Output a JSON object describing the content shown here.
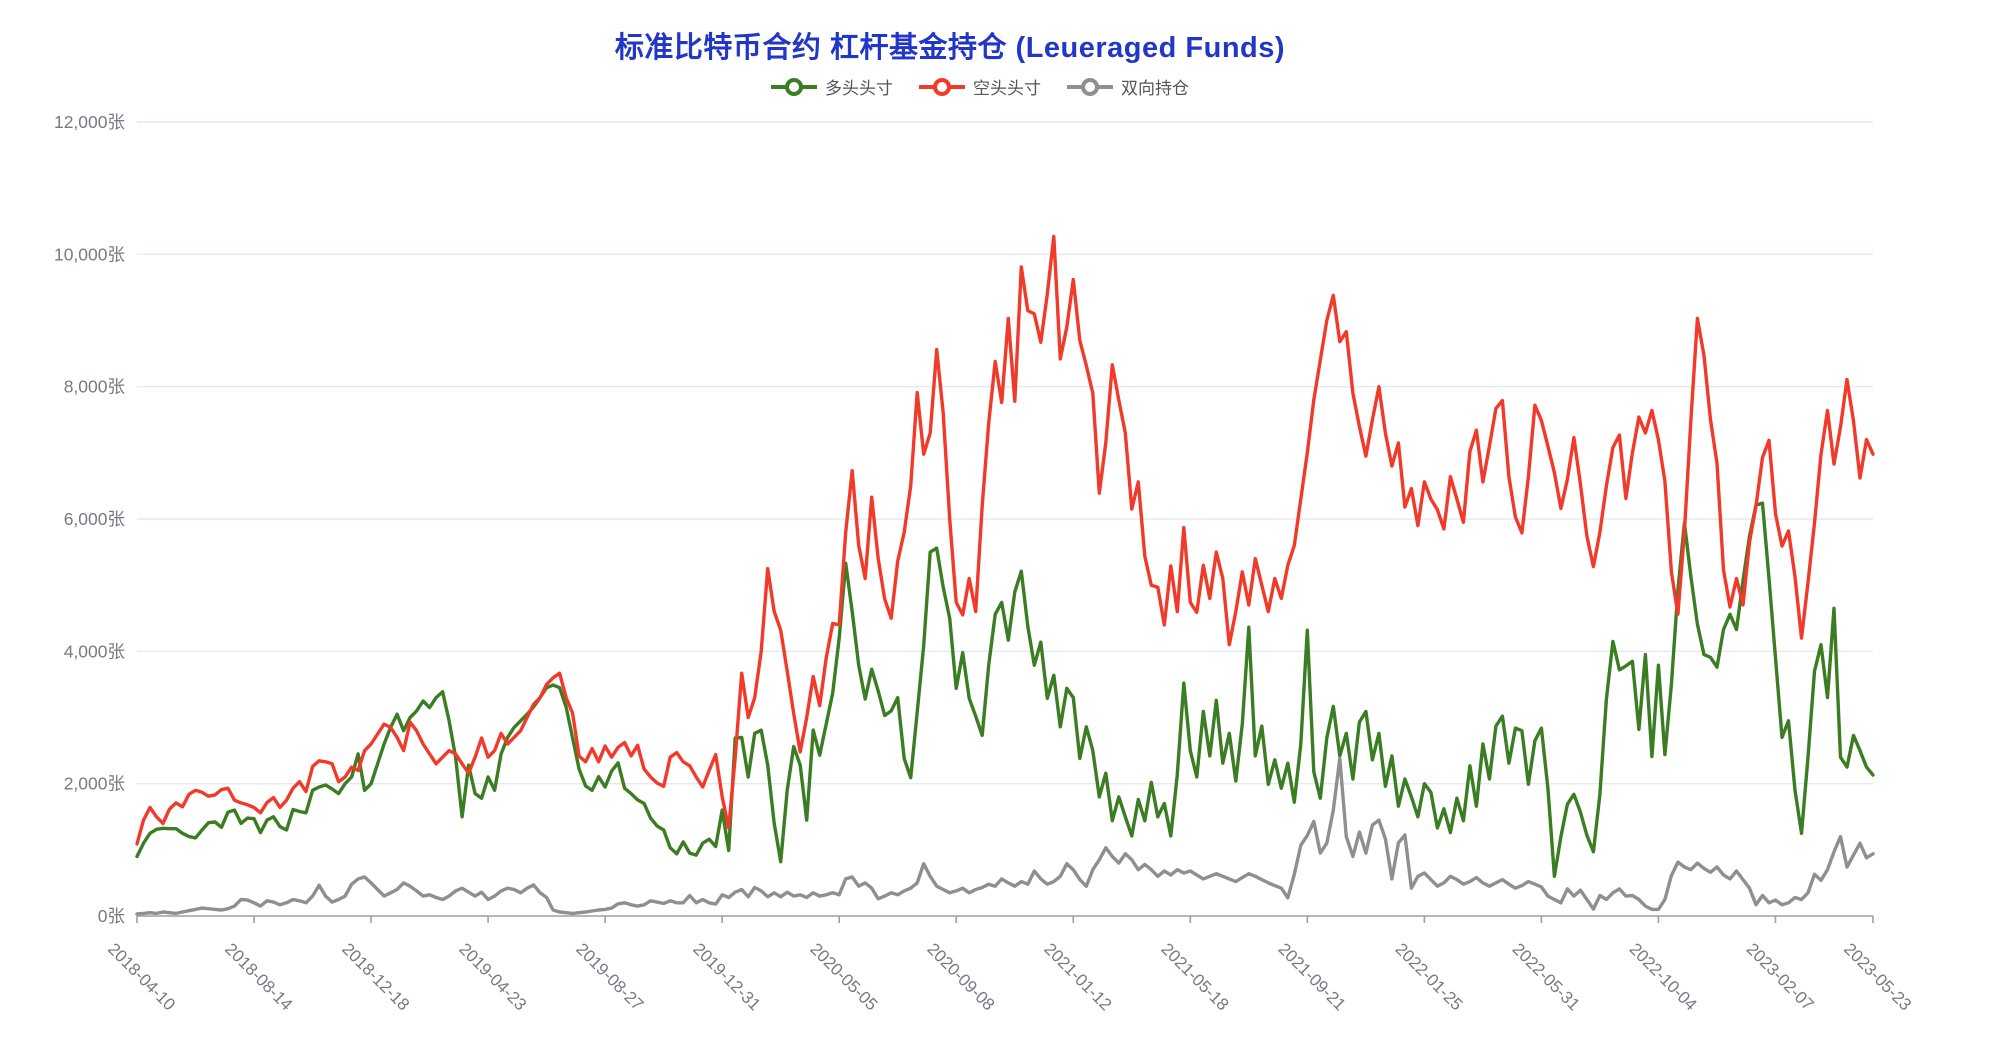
{
  "title": {
    "text": "标准比特币合约 杠杆基金持仓 (Leueraged Funds)",
    "color": "#2236c7"
  },
  "legend": {
    "items": [
      {
        "label": "多头头寸",
        "color": "#3b7d23"
      },
      {
        "label": "空头头寸",
        "color": "#f13a2a"
      },
      {
        "label": "双向持仓",
        "color": "#8f8f8f"
      }
    ]
  },
  "colors": {
    "background": "#ffffff",
    "grid_line": "#e5e9f2",
    "axis_line": "#9aa0a8",
    "axis_text": "#767a85",
    "title_text": "#2236c7",
    "legend_text": "#52555c"
  },
  "chart_data": {
    "type": "line",
    "title": "标准比特币合约 杠杆基金持仓 (Leueraged Funds)",
    "unit": "张",
    "frequency": "weekly",
    "n_points": 268,
    "x_range": [
      "2018-04-10",
      "2023-05-23"
    ],
    "x_tick_labels": [
      "2018-04-10",
      "2018-08-14",
      "2018-12-18",
      "2019-04-23",
      "2019-08-27",
      "2019-12-31",
      "2020-05-05",
      "2020-09-08",
      "2021-01-12",
      "2021-05-18",
      "2021-09-21",
      "2022-01-25",
      "2022-05-31",
      "2022-10-04",
      "2023-02-07",
      "2023-05-23"
    ],
    "x_tick_indices": [
      0,
      18,
      36,
      54,
      72,
      90,
      108,
      126,
      144,
      162,
      180,
      198,
      216,
      234,
      252,
      267
    ],
    "y_tick_labels": [
      "0张",
      "2,000张",
      "4,000张",
      "6,000张",
      "8,000张",
      "10,000张",
      "12,000张"
    ],
    "y_tick_values": [
      0,
      2000,
      4000,
      6000,
      8000,
      10000,
      12000
    ],
    "ylim": [
      0,
      12000
    ],
    "grid": true,
    "legend_position": "top",
    "series": [
      {
        "name": "多头头寸",
        "color": "#3b7d23",
        "values": [
          900,
          1100,
          1250,
          1310,
          1325,
          1320,
          1320,
          1250,
          1200,
          1180,
          1300,
          1410,
          1420,
          1340,
          1570,
          1600,
          1400,
          1480,
          1470,
          1260,
          1450,
          1500,
          1350,
          1300,
          1610,
          1580,
          1560,
          1900,
          1950,
          1980,
          1920,
          1850,
          2000,
          2100,
          2450,
          1900,
          2000,
          2300,
          2600,
          2850,
          3050,
          2800,
          3000,
          3100,
          3250,
          3150,
          3300,
          3390,
          2950,
          2400,
          1500,
          2280,
          1850,
          1780,
          2100,
          1900,
          2450,
          2700,
          2850,
          2950,
          3050,
          3160,
          3300,
          3450,
          3490,
          3450,
          3160,
          2690,
          2220,
          1965,
          1900,
          2105,
          1950,
          2190,
          2315,
          1930,
          1850,
          1755,
          1700,
          1480,
          1360,
          1300,
          1030,
          940,
          1120,
          950,
          920,
          1100,
          1160,
          1050,
          1600,
          990,
          2690,
          2700,
          2100,
          2760,
          2810,
          2280,
          1400,
          820,
          1900,
          2560,
          2280,
          1450,
          2810,
          2430,
          2900,
          3370,
          4200,
          5330,
          4600,
          3790,
          3280,
          3730,
          3400,
          3030,
          3100,
          3300,
          2380,
          2090,
          3080,
          4090,
          5500,
          5560,
          4970,
          4500,
          3440,
          3980,
          3290,
          3020,
          2730,
          3790,
          4560,
          4740,
          4170,
          4900,
          5210,
          4380,
          3790,
          4140,
          3290,
          3640,
          2860,
          3440,
          3300,
          2380,
          2860,
          2500,
          1800,
          2160,
          1440,
          1800,
          1500,
          1210,
          1760,
          1440,
          2020,
          1500,
          1700,
          1210,
          2140,
          3520,
          2500,
          2100,
          3090,
          2420,
          3260,
          2310,
          2760,
          2040,
          2900,
          4365,
          2420,
          2870,
          1990,
          2360,
          1930,
          2310,
          1720,
          2600,
          4320,
          2180,
          1780,
          2690,
          3170,
          2420,
          2760,
          2070,
          2930,
          3090,
          2360,
          2760,
          1960,
          2420,
          1660,
          2070,
          1800,
          1500,
          2000,
          1870,
          1330,
          1620,
          1260,
          1780,
          1440,
          2270,
          1660,
          2600,
          2070,
          2870,
          3020,
          2310,
          2840,
          2800,
          1990,
          2650,
          2840,
          1930,
          600,
          1200,
          1690,
          1840,
          1570,
          1220,
          970,
          1840,
          3280,
          4150,
          3720,
          3780,
          3850,
          2820,
          3950,
          2410,
          3790,
          2440,
          3500,
          4920,
          5940,
          5130,
          4410,
          3950,
          3910,
          3760,
          4330,
          4560,
          4330,
          5070,
          5740,
          6210,
          6240,
          5100,
          3900,
          2700,
          2950,
          1900,
          1250,
          2400,
          3700,
          4100,
          3300,
          4650,
          2400,
          2250,
          2730,
          2500,
          2250,
          2130
        ]
      },
      {
        "name": "空头头寸",
        "color": "#f13a2a",
        "values": [
          1090,
          1450,
          1640,
          1500,
          1400,
          1615,
          1710,
          1650,
          1840,
          1900,
          1870,
          1810,
          1830,
          1910,
          1930,
          1750,
          1710,
          1680,
          1640,
          1560,
          1715,
          1790,
          1640,
          1750,
          1930,
          2030,
          1880,
          2260,
          2345,
          2330,
          2300,
          2030,
          2100,
          2250,
          2200,
          2500,
          2600,
          2750,
          2900,
          2850,
          2700,
          2500,
          2930,
          2800,
          2600,
          2450,
          2300,
          2400,
          2500,
          2450,
          2300,
          2160,
          2400,
          2690,
          2400,
          2500,
          2760,
          2600,
          2700,
          2800,
          3000,
          3200,
          3300,
          3500,
          3600,
          3670,
          3300,
          3065,
          2415,
          2330,
          2530,
          2330,
          2570,
          2400,
          2550,
          2620,
          2420,
          2580,
          2220,
          2100,
          2010,
          1960,
          2400,
          2470,
          2330,
          2270,
          2100,
          1950,
          2200,
          2440,
          1800,
          1330,
          2400,
          3670,
          3000,
          3300,
          4000,
          5250,
          4600,
          4320,
          3700,
          3060,
          2480,
          3000,
          3620,
          3180,
          3900,
          4420,
          4400,
          5800,
          6730,
          5600,
          5100,
          6330,
          5400,
          4790,
          4500,
          5360,
          5800,
          6500,
          7910,
          6980,
          7300,
          8560,
          7600,
          6000,
          4740,
          4550,
          5100,
          4600,
          6200,
          7450,
          8380,
          7760,
          9030,
          7780,
          9810,
          9150,
          9100,
          8670,
          9400,
          10270,
          8420,
          8900,
          9620,
          8700,
          8320,
          7900,
          6390,
          7150,
          8330,
          7800,
          7300,
          6150,
          6560,
          5440,
          5000,
          4970,
          4400,
          5290,
          4600,
          5870,
          4740,
          4590,
          5300,
          4800,
          5500,
          5100,
          4100,
          4600,
          5200,
          4700,
          5400,
          5000,
          4600,
          5100,
          4800,
          5300,
          5600,
          6300,
          7000,
          7800,
          8400,
          9000,
          9380,
          8680,
          8830,
          7900,
          7400,
          6950,
          7500,
          8000,
          7300,
          6800,
          7150,
          6180,
          6460,
          5900,
          6560,
          6300,
          6140,
          5850,
          6640,
          6300,
          5950,
          7020,
          7340,
          6560,
          7100,
          7670,
          7790,
          6640,
          6030,
          5790,
          6640,
          7720,
          7490,
          7100,
          6700,
          6160,
          6600,
          7230,
          6530,
          5740,
          5280,
          5800,
          6500,
          7080,
          7270,
          6310,
          7000,
          7540,
          7300,
          7640,
          7200,
          6570,
          5200,
          4560,
          5800,
          7500,
          9030,
          8470,
          7500,
          6840,
          5230,
          4670,
          5100,
          4700,
          5650,
          6200,
          6930,
          7190,
          6080,
          5590,
          5820,
          5130,
          4200,
          5040,
          5940,
          6980,
          7640,
          6830,
          7390,
          8110,
          7480,
          6620,
          7200,
          6980
        ]
      },
      {
        "name": "双向持仓",
        "color": "#8f8f8f",
        "values": [
          30,
          40,
          50,
          40,
          60,
          50,
          40,
          60,
          80,
          100,
          120,
          110,
          100,
          90,
          110,
          150,
          250,
          240,
          200,
          150,
          230,
          210,
          170,
          200,
          250,
          230,
          200,
          300,
          465,
          300,
          210,
          250,
          300,
          480,
          560,
          590,
          500,
          400,
          300,
          350,
          400,
          500,
          450,
          380,
          300,
          320,
          280,
          250,
          300,
          380,
          420,
          360,
          300,
          360,
          250,
          300,
          380,
          420,
          400,
          350,
          420,
          470,
          350,
          280,
          90,
          60,
          50,
          40,
          50,
          60,
          75,
          90,
          100,
          120,
          185,
          200,
          170,
          150,
          170,
          230,
          210,
          190,
          230,
          200,
          200,
          310,
          200,
          250,
          200,
          180,
          320,
          280,
          360,
          400,
          290,
          430,
          380,
          290,
          350,
          290,
          360,
          300,
          320,
          280,
          350,
          300,
          320,
          350,
          320,
          560,
          590,
          450,
          500,
          420,
          260,
          300,
          350,
          320,
          380,
          420,
          500,
          790,
          600,
          450,
          400,
          350,
          380,
          420,
          350,
          400,
          430,
          480,
          450,
          560,
          500,
          450,
          520,
          480,
          680,
          560,
          480,
          520,
          600,
          790,
          700,
          550,
          450,
          700,
          850,
          1030,
          900,
          800,
          940,
          850,
          700,
          780,
          700,
          600,
          680,
          620,
          700,
          650,
          680,
          620,
          560,
          600,
          640,
          600,
          560,
          520,
          580,
          640,
          600,
          550,
          500,
          460,
          420,
          275,
          630,
          1070,
          1215,
          1430,
          950,
          1100,
          1600,
          2380,
          1200,
          900,
          1270,
          950,
          1375,
          1450,
          1165,
          560,
          1105,
          1225,
          420,
          600,
          650,
          550,
          450,
          500,
          600,
          550,
          480,
          520,
          580,
          500,
          450,
          500,
          550,
          480,
          420,
          460,
          520,
          480,
          440,
          300,
          250,
          200,
          410,
          300,
          390,
          250,
          105,
          310,
          250,
          350,
          410,
          300,
          310,
          250,
          150,
          100,
          100,
          250,
          610,
          815,
          740,
          700,
          800,
          720,
          660,
          740,
          620,
          560,
          680,
          550,
          420,
          170,
          310,
          200,
          240,
          170,
          200,
          280,
          250,
          350,
          630,
          540,
          700,
          970,
          1200,
          740,
          920,
          1100,
          880,
          940
        ]
      }
    ]
  }
}
